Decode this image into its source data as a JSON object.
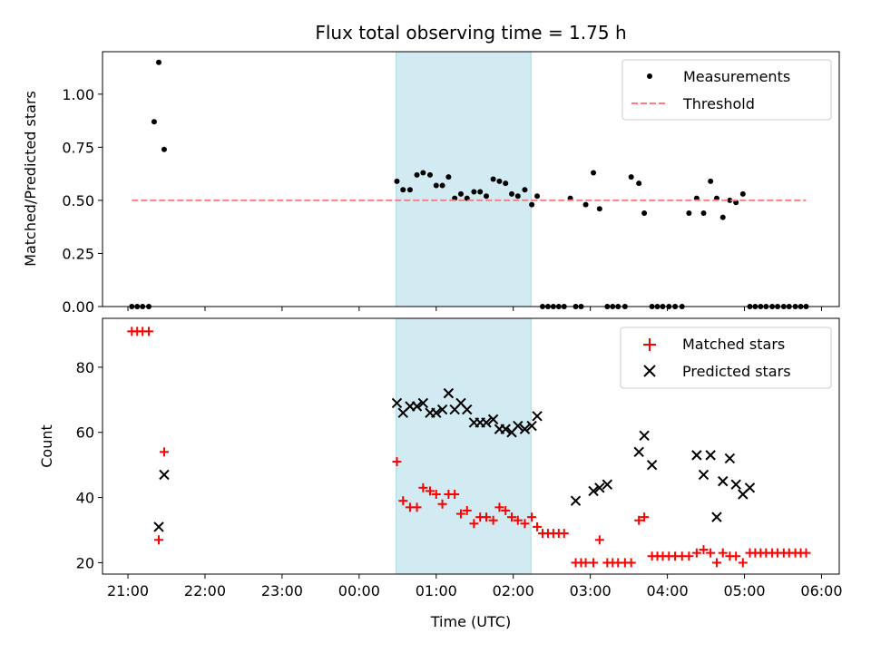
{
  "chart_data": {
    "title": "Flux total observing time = 1.75 h",
    "xlabel": "Time (UTC)",
    "x_ticks": [
      "21:00",
      "22:00",
      "23:00",
      "00:00",
      "01:00",
      "02:00",
      "03:00",
      "04:00",
      "05:00",
      "06:00"
    ],
    "x_range_hours": [
      20.67,
      30.23
    ],
    "observing_window_hours": [
      24.48,
      26.23
    ],
    "colors": {
      "span": "#add8e6",
      "threshold": "#ff7f7f",
      "measurement": "#000000",
      "matched": "#ff0000",
      "predicted": "#000000"
    },
    "panels": [
      {
        "type": "scatter",
        "ylabel": "Matched/Predicted stars",
        "ylim": [
          0,
          1.2
        ],
        "y_ticks": [
          "0.00",
          "0.25",
          "0.50",
          "0.75",
          "1.00"
        ],
        "y_tick_values": [
          0,
          0.25,
          0.5,
          0.75,
          1.0
        ],
        "legend_placement": "top-right",
        "series": [
          {
            "name": "Measurements",
            "marker": "dot",
            "x": [
              21.05,
              21.12,
              21.19,
              21.27,
              21.34,
              21.4,
              21.47,
              24.49,
              24.57,
              24.66,
              24.75,
              24.83,
              24.92,
              25.0,
              25.08,
              25.16,
              25.24,
              25.32,
              25.4,
              25.49,
              25.57,
              25.65,
              25.74,
              25.82,
              25.9,
              25.98,
              26.06,
              26.15,
              26.24,
              26.31,
              26.38,
              26.45,
              26.52,
              26.59,
              26.66,
              26.74,
              26.81,
              26.88,
              26.94,
              27.04,
              27.12,
              27.22,
              27.29,
              27.36,
              27.45,
              27.53,
              27.63,
              27.7,
              27.8,
              27.87,
              27.94,
              28.02,
              28.1,
              28.19,
              28.28,
              28.38,
              28.47,
              28.56,
              28.64,
              28.72,
              28.81,
              28.89,
              28.98,
              29.07,
              29.14,
              29.21,
              29.28,
              29.36,
              29.43,
              29.51,
              29.58,
              29.66,
              29.73,
              29.8
            ],
            "y": [
              0,
              0,
              0,
              0,
              0.87,
              1.15,
              0.74,
              0.59,
              0.55,
              0.55,
              0.62,
              0.63,
              0.62,
              0.57,
              0.57,
              0.61,
              0.51,
              0.53,
              0.51,
              0.54,
              0.54,
              0.52,
              0.6,
              0.59,
              0.58,
              0.53,
              0.52,
              0.55,
              0.48,
              0.52,
              0,
              0,
              0,
              0,
              0,
              0.51,
              0,
              0,
              0.48,
              0.63,
              0.46,
              0,
              0,
              0,
              0,
              0.61,
              0.58,
              0.44,
              0,
              0,
              0,
              0,
              0,
              0,
              0.44,
              0.51,
              0.44,
              0.59,
              0.51,
              0.42,
              0.5,
              0.49,
              0.53,
              0,
              0,
              0,
              0,
              0,
              0,
              0,
              0,
              0,
              0,
              0
            ]
          },
          {
            "name": "Threshold",
            "marker": "dashed-line",
            "x": [
              21.05,
              29.8
            ],
            "y": [
              0.5,
              0.5
            ]
          }
        ]
      },
      {
        "type": "scatter",
        "ylabel": "Count",
        "ylim": [
          16.5,
          95
        ],
        "y_ticks": [
          "20",
          "40",
          "60",
          "80"
        ],
        "y_tick_values": [
          20,
          40,
          60,
          80
        ],
        "legend_placement": "top-right",
        "series": [
          {
            "name": "Matched stars",
            "marker": "plus",
            "x": [
              21.05,
              21.12,
              21.19,
              21.27,
              21.4,
              21.47,
              24.49,
              24.57,
              24.66,
              24.75,
              24.83,
              24.92,
              25.0,
              25.08,
              25.16,
              25.24,
              25.32,
              25.4,
              25.49,
              25.57,
              25.65,
              25.74,
              25.82,
              25.9,
              25.98,
              26.06,
              26.15,
              26.24,
              26.31,
              26.38,
              26.45,
              26.52,
              26.59,
              26.66,
              26.81,
              26.88,
              26.94,
              27.04,
              27.12,
              27.22,
              27.29,
              27.36,
              27.45,
              27.53,
              27.63,
              27.7,
              27.8,
              27.87,
              27.94,
              28.02,
              28.1,
              28.19,
              28.28,
              28.38,
              28.47,
              28.56,
              28.64,
              28.72,
              28.81,
              28.89,
              28.98,
              29.07,
              29.14,
              29.21,
              29.28,
              29.36,
              29.43,
              29.51,
              29.58,
              29.66,
              29.73,
              29.8
            ],
            "y": [
              91,
              91,
              91,
              91,
              27,
              54,
              51,
              39,
              37,
              37,
              43,
              42,
              41,
              38,
              41,
              41,
              35,
              36,
              32,
              34,
              34,
              33,
              37,
              36,
              34,
              33,
              32,
              34,
              31,
              29,
              29,
              29,
              29,
              29,
              20,
              20,
              20,
              20,
              27,
              20,
              20,
              20,
              20,
              20,
              33,
              34,
              22,
              22,
              22,
              22,
              22,
              22,
              22,
              23,
              24,
              23,
              20,
              23,
              22,
              22,
              20,
              23,
              23,
              23,
              23,
              23,
              23,
              23,
              23,
              23,
              23,
              23
            ]
          },
          {
            "name": "Predicted stars",
            "marker": "x",
            "x": [
              21.4,
              21.47,
              24.49,
              24.57,
              24.66,
              24.75,
              24.83,
              24.92,
              25.0,
              25.08,
              25.16,
              25.24,
              25.32,
              25.4,
              25.49,
              25.57,
              25.65,
              25.74,
              25.82,
              25.9,
              25.98,
              26.06,
              26.15,
              26.24,
              26.31,
              26.81,
              27.04,
              27.12,
              27.22,
              27.63,
              27.7,
              27.8,
              28.38,
              28.47,
              28.56,
              28.64,
              28.72,
              28.81,
              28.89,
              28.98,
              29.07
            ],
            "y": [
              31,
              47,
              69,
              66,
              68,
              68,
              69,
              66,
              66,
              67,
              72,
              67,
              69,
              67,
              63,
              63,
              63,
              64,
              61,
              61,
              60,
              62,
              61,
              62,
              65,
              39,
              42,
              43,
              44,
              54,
              59,
              50,
              53,
              47,
              53,
              34,
              45,
              52,
              44,
              41,
              43
            ]
          }
        ]
      }
    ]
  }
}
